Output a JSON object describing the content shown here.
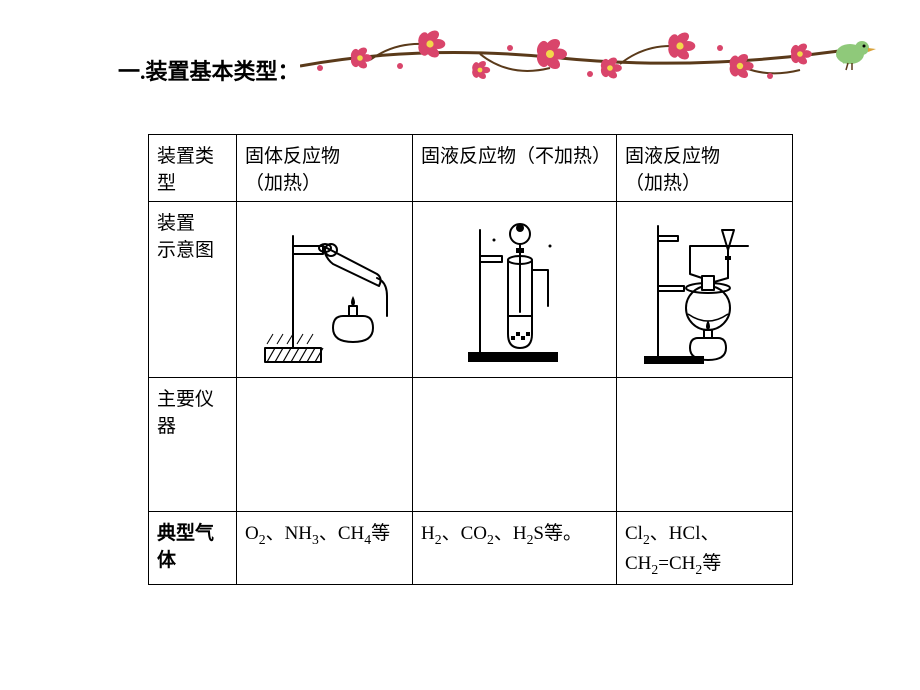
{
  "heading": "一.装置基本类型：",
  "table": {
    "row_labels": {
      "r1": "装置类型",
      "r2": "装置\n示意图",
      "r3": "主要仪器",
      "r4": "典型气体"
    },
    "cols": {
      "a": {
        "header": "固体反应物\n（加热）",
        "diagram_name": "apparatus-solid-heat",
        "gases_html": "O<sub class='sub'>2</sub>、NH<sub class='sub'>3</sub>、CH<sub class='sub'>4</sub>等"
      },
      "b": {
        "header": "固液反应物（不加热）",
        "diagram_name": "apparatus-solid-liquid-noheat",
        "gases_html": "H<sub class='sub'>2</sub>、CO<sub class='sub'>2</sub>、H<sub class='sub'>2</sub>S等。"
      },
      "c": {
        "header": "固液反应物\n（加热）",
        "diagram_name": "apparatus-solid-liquid-heat",
        "gases_html": "Cl<sub class='sub'>2</sub>、HCl、<br>CH<sub class='sub'>2</sub>=CH<sub class='sub'>2</sub>等"
      }
    }
  },
  "decoration": {
    "branch_color": "#5a3a1a",
    "flower_color": "#d9456b",
    "flower_center": "#f2d84a",
    "bird_body": "#8fc97a",
    "bird_beak": "#d9a23a"
  },
  "diagram_style": {
    "stroke": "#000000",
    "stroke_width": 2,
    "fill_dark": "#000000",
    "hatch_stroke": "#000000"
  }
}
